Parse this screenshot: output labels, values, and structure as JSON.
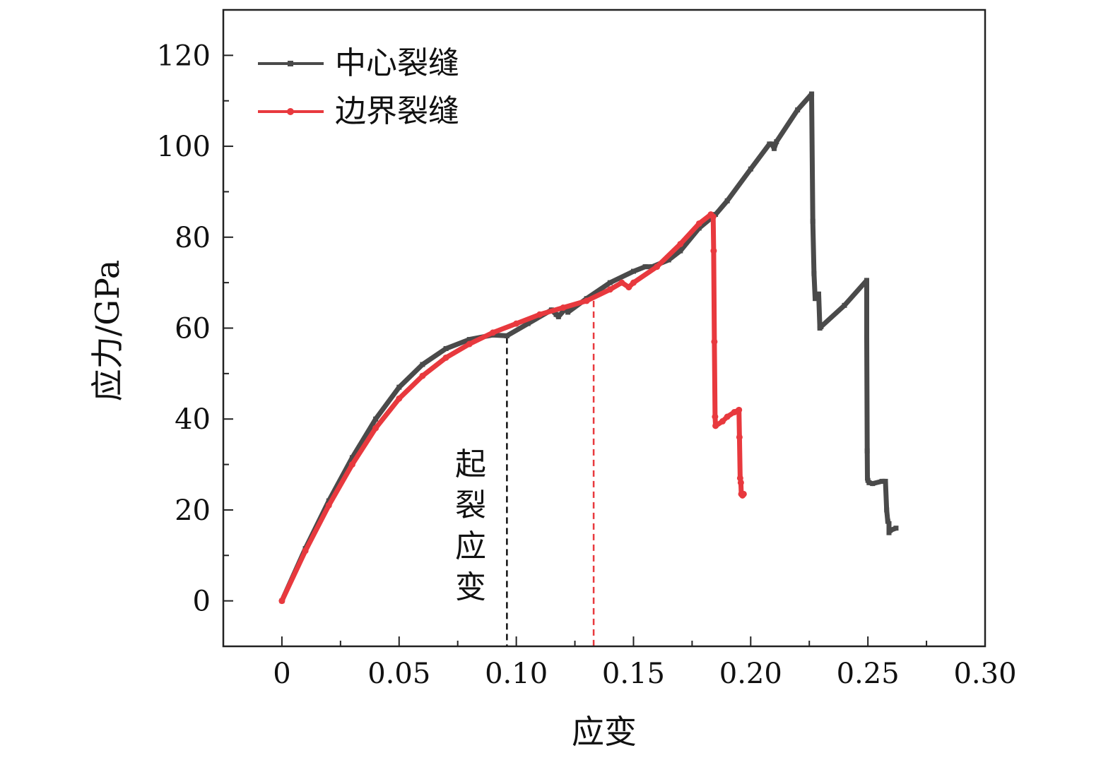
{
  "chart_data": {
    "type": "line",
    "xlabel": "应变",
    "ylabel": "应力/GPa",
    "xlim": [
      -0.025,
      0.3
    ],
    "ylim": [
      -10,
      130
    ],
    "x_ticks": [
      0,
      0.05,
      0.1,
      0.15,
      0.2,
      0.25,
      0.3
    ],
    "x_tick_labels": [
      "0",
      "0.05",
      "0.10",
      "0.15",
      "0.20",
      "0.25",
      "0.30"
    ],
    "y_ticks": [
      0,
      20,
      40,
      60,
      80,
      100,
      120
    ],
    "y_tick_labels": [
      "0",
      "20",
      "40",
      "60",
      "80",
      "100",
      "120"
    ],
    "grid": false,
    "legend_position": "top-left",
    "annotation": {
      "text": "起裂应变",
      "lines": [
        {
          "x": 0.096,
          "y_top": 58,
          "color": "#111111"
        },
        {
          "x": 0.133,
          "y_top": 66,
          "color": "#e8393e"
        }
      ]
    },
    "series": [
      {
        "name": "中心裂缝",
        "color": "#4a4a4a",
        "marker": "square",
        "x": [
          0,
          0.01,
          0.02,
          0.03,
          0.04,
          0.05,
          0.06,
          0.07,
          0.08,
          0.09,
          0.096,
          0.105,
          0.115,
          0.117,
          0.118,
          0.121,
          0.122,
          0.13,
          0.14,
          0.15,
          0.155,
          0.158,
          0.165,
          0.17,
          0.178,
          0.185,
          0.19,
          0.2,
          0.208,
          0.209,
          0.21,
          0.211,
          0.22,
          0.226,
          0.226,
          0.2265,
          0.227,
          0.2275,
          0.228,
          0.229,
          0.2295,
          0.23,
          0.24,
          0.2495,
          0.2495,
          0.2497,
          0.2498,
          0.25,
          0.2505,
          0.252,
          0.256,
          0.2575,
          0.258,
          0.2585,
          0.259,
          0.259,
          0.2595,
          0.262
        ],
        "y": [
          0,
          11.5,
          22,
          31.5,
          40,
          47,
          52,
          55.5,
          57.5,
          58.5,
          58.3,
          61,
          64,
          63,
          62.5,
          64.3,
          63.5,
          66.5,
          70,
          72.5,
          73.5,
          73.5,
          75,
          77,
          82,
          85,
          88,
          95,
          100.5,
          100.5,
          99.5,
          101,
          108,
          111.5,
          111.5,
          83.5,
          72,
          66.5,
          67,
          67.5,
          60,
          60.3,
          65,
          70.5,
          58,
          33,
          27,
          26.5,
          26,
          25.8,
          26.3,
          26.3,
          20,
          17.5,
          17,
          15,
          15.5,
          16
        ]
      },
      {
        "name": "边界裂缝",
        "color": "#e8393e",
        "marker": "circle",
        "x": [
          0,
          0.01,
          0.02,
          0.03,
          0.04,
          0.05,
          0.06,
          0.07,
          0.08,
          0.09,
          0.1,
          0.11,
          0.12,
          0.13,
          0.14,
          0.145,
          0.148,
          0.15,
          0.16,
          0.17,
          0.178,
          0.183,
          0.184,
          0.1842,
          0.1845,
          0.1848,
          0.185,
          0.188,
          0.19,
          0.193,
          0.195,
          0.1952,
          0.1955,
          0.1958,
          0.196,
          0.1965,
          0.197
        ],
        "y": [
          0,
          11,
          21,
          30,
          38,
          44.5,
          49.5,
          53.5,
          56.5,
          59,
          61,
          63,
          64.5,
          66,
          68.5,
          70,
          69,
          70,
          73.5,
          78.5,
          83,
          85,
          84.5,
          77,
          57,
          40.5,
          38.5,
          39.5,
          40.5,
          41.5,
          42,
          36,
          27,
          26,
          23.5,
          23.2,
          23.5
        ]
      }
    ]
  },
  "legend": {
    "items": [
      {
        "label": "中心裂缝",
        "color": "#4a4a4a"
      },
      {
        "label": "边界裂缝",
        "color": "#e8393e"
      }
    ]
  }
}
